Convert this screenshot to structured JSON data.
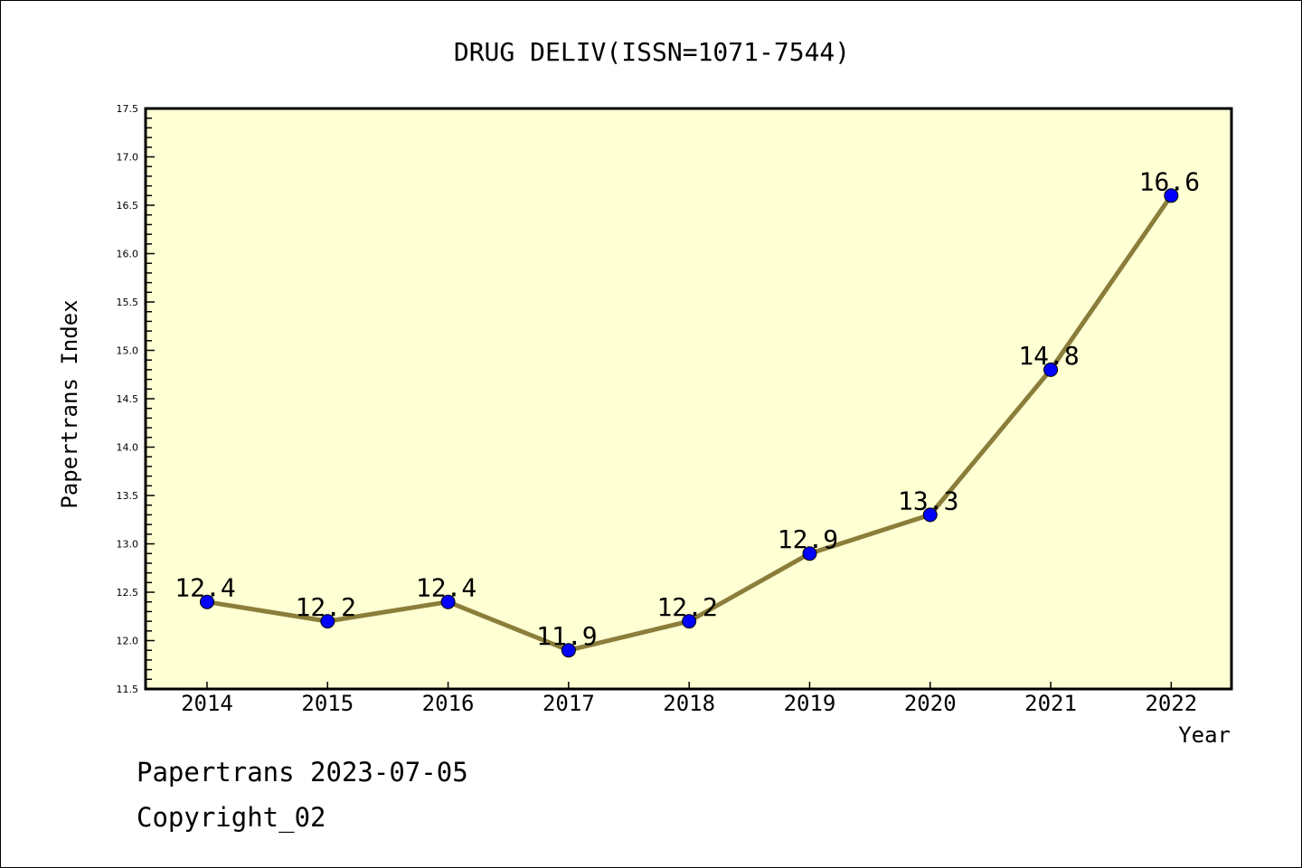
{
  "chart_data": {
    "type": "line",
    "title": "DRUG DELIV(ISSN=1071-7544)",
    "xlabel": "Year",
    "ylabel": "Papertrans Index",
    "categories": [
      "2014",
      "2015",
      "2016",
      "2017",
      "2018",
      "2019",
      "2020",
      "2021",
      "2022"
    ],
    "x": [
      2014,
      2015,
      2016,
      2017,
      2018,
      2019,
      2020,
      2021,
      2022
    ],
    "values": [
      12.4,
      12.2,
      12.4,
      11.9,
      12.2,
      12.9,
      13.3,
      14.8,
      16.6
    ],
    "data_labels": [
      "12.4",
      "12.2",
      "12.4",
      "11.9",
      "12.2",
      "12.9",
      "13.3",
      "14.8",
      "16.6"
    ],
    "ylim": [
      11.5,
      17.5
    ],
    "xlim": [
      2013.49,
      2022.5
    ],
    "yticks": [
      "11.5",
      "12.0",
      "12.5",
      "13.0",
      "13.5",
      "14.0",
      "14.5",
      "15.0",
      "15.5",
      "16.0",
      "16.5",
      "17.0",
      "17.5"
    ],
    "grid": false,
    "colors": {
      "line": "#8b7d3a",
      "marker": "#0000ff",
      "plot_bg": "#ffffd4"
    }
  },
  "footer": {
    "line1": "Papertrans 2023-07-05",
    "line2": "Copyright_02"
  }
}
